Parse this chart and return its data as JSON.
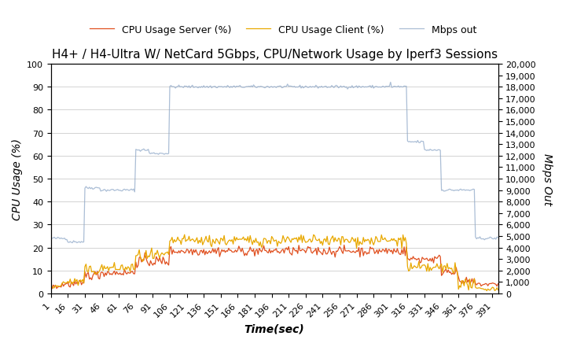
{
  "title": "H4+ / H4-Ultra W/ NetCard 5Gbps, CPU/Network Usage by Iperf3 Sessions",
  "xlabel": "Time(sec)",
  "ylabel_left": "CPU Usage (%)",
  "ylabel_right": "Mbps Out",
  "x_ticks": [
    1,
    16,
    31,
    46,
    61,
    76,
    91,
    106,
    121,
    136,
    151,
    166,
    181,
    196,
    211,
    226,
    241,
    256,
    271,
    286,
    301,
    316,
    331,
    346,
    361,
    376,
    391
  ],
  "ylim_left": [
    0,
    100
  ],
  "ylim_right": [
    0,
    20000
  ],
  "yticks_left": [
    0,
    10,
    20,
    30,
    40,
    50,
    60,
    70,
    80,
    90,
    100
  ],
  "yticks_right": [
    0,
    1000,
    2000,
    3000,
    4000,
    5000,
    6000,
    7000,
    8000,
    9000,
    10000,
    11000,
    12000,
    13000,
    14000,
    15000,
    16000,
    17000,
    18000,
    19000,
    20000
  ],
  "color_server": "#e05020",
  "color_client": "#e8a800",
  "color_mbps": "#8fa8c8",
  "legend_labels": [
    "CPU Usage Server (%)",
    "CPU Usage Client (%)",
    "Mbps out"
  ],
  "title_fontsize": 11,
  "axis_label_fontsize": 10,
  "tick_fontsize": 8,
  "legend_fontsize": 9,
  "xlim": [
    1,
    396
  ]
}
